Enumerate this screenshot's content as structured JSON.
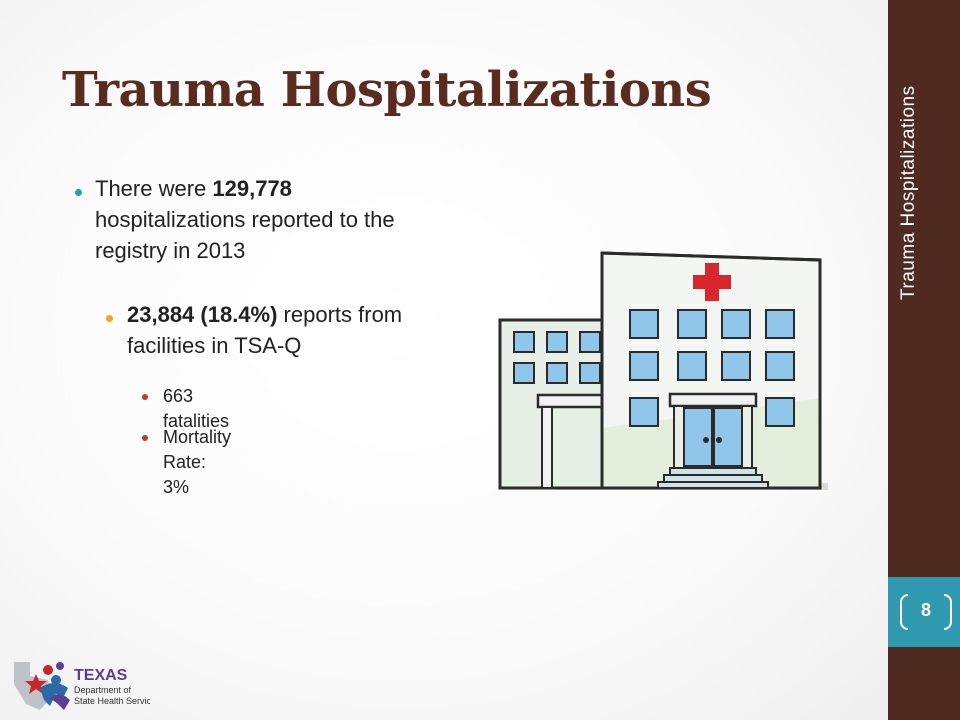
{
  "slide": {
    "title": "Trauma Hospitalizations",
    "side_title": "Trauma Hospitalizations",
    "page_number": "8"
  },
  "bullets": {
    "b1_pre": "There were ",
    "b1_bold": "129,778",
    "b1_post": " hospitalizations reported to the registry in 2013",
    "b2_bold": "23,884 (18.4%)",
    "b2_post": " reports from facilities in TSA-Q",
    "b3": "663 fatalities",
    "b4": "Mortality Rate: 3%"
  },
  "logo": {
    "line1": "TEXAS",
    "line2": "Department of",
    "line3": "State Health Services"
  },
  "colors": {
    "title": "#5a2b1f",
    "sidebar": "#4e2a20",
    "accent_teal": "#2f9ab0",
    "bullet_orange": "#e8a92a",
    "bullet_red": "#c0392b"
  },
  "icons": [
    "hospital-illustration",
    "texas-dshs-logo"
  ]
}
